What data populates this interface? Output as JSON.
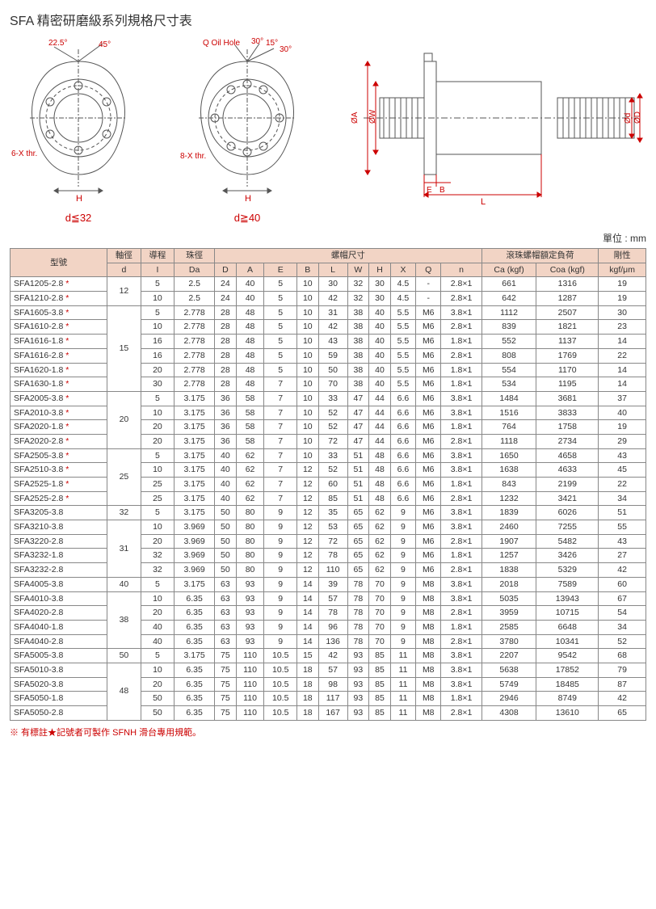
{
  "title": "SFA 精密研磨級系列規格尺寸表",
  "diagrams": {
    "left_label": "d≦32",
    "mid_label": "d≧40",
    "angles": {
      "a1": "22.5°",
      "a2": "45°",
      "a3": "30°",
      "a4": "15°",
      "a5": "30°"
    },
    "oil_hole": "Q Oil Hole",
    "thr_left": "6-X thr.",
    "thr_mid": "8-X thr.",
    "dims": {
      "H": "H",
      "OA": "ØA",
      "OW": "ØW",
      "E": "E",
      "B": "B",
      "L": "L",
      "Od": "Ød",
      "OD": "ØD"
    }
  },
  "unit": "單位 : mm",
  "headers": {
    "model": "型號",
    "shaft": "軸徑",
    "shaft_sub": "d",
    "lead": "導程",
    "lead_sub": "I",
    "ball": "珠徑",
    "ball_sub": "Da",
    "nut": "螺帽尺寸",
    "D": "D",
    "A": "A",
    "E": "E",
    "B": "B",
    "L": "L",
    "W": "W",
    "Hh": "H",
    "X": "X",
    "Q": "Q",
    "n": "n",
    "load": "滾珠螺帽額定負荷",
    "Ca": "Ca (kgf)",
    "Coa": "Coa (kgf)",
    "stiff": "剛性",
    "stiff_sub": "kgf/μm"
  },
  "groups": [
    {
      "d": "12",
      "rows": [
        {
          "m": "SFA1205-2.8",
          "s": 1,
          "I": "5",
          "Da": "2.5",
          "D": "24",
          "A": "40",
          "E": "5",
          "B": "10",
          "L": "30",
          "W": "32",
          "H": "30",
          "X": "4.5",
          "Q": "-",
          "n": "2.8×1",
          "Ca": "661",
          "Coa": "1316",
          "k": "19"
        },
        {
          "m": "SFA1210-2.8",
          "s": 1,
          "I": "10",
          "Da": "2.5",
          "D": "24",
          "A": "40",
          "E": "5",
          "B": "10",
          "L": "42",
          "W": "32",
          "H": "30",
          "X": "4.5",
          "Q": "-",
          "n": "2.8×1",
          "Ca": "642",
          "Coa": "1287",
          "k": "19"
        }
      ]
    },
    {
      "d": "15",
      "rows": [
        {
          "m": "SFA1605-3.8",
          "s": 1,
          "I": "5",
          "Da": "2.778",
          "D": "28",
          "A": "48",
          "E": "5",
          "B": "10",
          "L": "31",
          "W": "38",
          "H": "40",
          "X": "5.5",
          "Q": "M6",
          "n": "3.8×1",
          "Ca": "1112",
          "Coa": "2507",
          "k": "30"
        },
        {
          "m": "SFA1610-2.8",
          "s": 1,
          "I": "10",
          "Da": "2.778",
          "D": "28",
          "A": "48",
          "E": "5",
          "B": "10",
          "L": "42",
          "W": "38",
          "H": "40",
          "X": "5.5",
          "Q": "M6",
          "n": "2.8×1",
          "Ca": "839",
          "Coa": "1821",
          "k": "23"
        },
        {
          "m": "SFA1616-1.8",
          "s": 1,
          "I": "16",
          "Da": "2.778",
          "D": "28",
          "A": "48",
          "E": "5",
          "B": "10",
          "L": "43",
          "W": "38",
          "H": "40",
          "X": "5.5",
          "Q": "M6",
          "n": "1.8×1",
          "Ca": "552",
          "Coa": "1137",
          "k": "14"
        },
        {
          "m": "SFA1616-2.8",
          "s": 1,
          "I": "16",
          "Da": "2.778",
          "D": "28",
          "A": "48",
          "E": "5",
          "B": "10",
          "L": "59",
          "W": "38",
          "H": "40",
          "X": "5.5",
          "Q": "M6",
          "n": "2.8×1",
          "Ca": "808",
          "Coa": "1769",
          "k": "22"
        },
        {
          "m": "SFA1620-1.8",
          "s": 1,
          "I": "20",
          "Da": "2.778",
          "D": "28",
          "A": "48",
          "E": "5",
          "B": "10",
          "L": "50",
          "W": "38",
          "H": "40",
          "X": "5.5",
          "Q": "M6",
          "n": "1.8×1",
          "Ca": "554",
          "Coa": "1170",
          "k": "14"
        },
        {
          "m": "SFA1630-1.8",
          "s": 1,
          "I": "30",
          "Da": "2.778",
          "D": "28",
          "A": "48",
          "E": "7",
          "B": "10",
          "L": "70",
          "W": "38",
          "H": "40",
          "X": "5.5",
          "Q": "M6",
          "n": "1.8×1",
          "Ca": "534",
          "Coa": "1195",
          "k": "14"
        }
      ]
    },
    {
      "d": "20",
      "rows": [
        {
          "m": "SFA2005-3.8",
          "s": 1,
          "I": "5",
          "Da": "3.175",
          "D": "36",
          "A": "58",
          "E": "7",
          "B": "10",
          "L": "33",
          "W": "47",
          "H": "44",
          "X": "6.6",
          "Q": "M6",
          "n": "3.8×1",
          "Ca": "1484",
          "Coa": "3681",
          "k": "37"
        },
        {
          "m": "SFA2010-3.8",
          "s": 1,
          "I": "10",
          "Da": "3.175",
          "D": "36",
          "A": "58",
          "E": "7",
          "B": "10",
          "L": "52",
          "W": "47",
          "H": "44",
          "X": "6.6",
          "Q": "M6",
          "n": "3.8×1",
          "Ca": "1516",
          "Coa": "3833",
          "k": "40"
        },
        {
          "m": "SFA2020-1.8",
          "s": 1,
          "I": "20",
          "Da": "3.175",
          "D": "36",
          "A": "58",
          "E": "7",
          "B": "10",
          "L": "52",
          "W": "47",
          "H": "44",
          "X": "6.6",
          "Q": "M6",
          "n": "1.8×1",
          "Ca": "764",
          "Coa": "1758",
          "k": "19"
        },
        {
          "m": "SFA2020-2.8",
          "s": 1,
          "I": "20",
          "Da": "3.175",
          "D": "36",
          "A": "58",
          "E": "7",
          "B": "10",
          "L": "72",
          "W": "47",
          "H": "44",
          "X": "6.6",
          "Q": "M6",
          "n": "2.8×1",
          "Ca": "1118",
          "Coa": "2734",
          "k": "29"
        }
      ]
    },
    {
      "d": "25",
      "rows": [
        {
          "m": "SFA2505-3.8",
          "s": 1,
          "I": "5",
          "Da": "3.175",
          "D": "40",
          "A": "62",
          "E": "7",
          "B": "10",
          "L": "33",
          "W": "51",
          "H": "48",
          "X": "6.6",
          "Q": "M6",
          "n": "3.8×1",
          "Ca": "1650",
          "Coa": "4658",
          "k": "43"
        },
        {
          "m": "SFA2510-3.8",
          "s": 1,
          "I": "10",
          "Da": "3.175",
          "D": "40",
          "A": "62",
          "E": "7",
          "B": "12",
          "L": "52",
          "W": "51",
          "H": "48",
          "X": "6.6",
          "Q": "M6",
          "n": "3.8×1",
          "Ca": "1638",
          "Coa": "4633",
          "k": "45"
        },
        {
          "m": "SFA2525-1.8",
          "s": 1,
          "I": "25",
          "Da": "3.175",
          "D": "40",
          "A": "62",
          "E": "7",
          "B": "12",
          "L": "60",
          "W": "51",
          "H": "48",
          "X": "6.6",
          "Q": "M6",
          "n": "1.8×1",
          "Ca": "843",
          "Coa": "2199",
          "k": "22"
        },
        {
          "m": "SFA2525-2.8",
          "s": 1,
          "I": "25",
          "Da": "3.175",
          "D": "40",
          "A": "62",
          "E": "7",
          "B": "12",
          "L": "85",
          "W": "51",
          "H": "48",
          "X": "6.6",
          "Q": "M6",
          "n": "2.8×1",
          "Ca": "1232",
          "Coa": "3421",
          "k": "34"
        }
      ]
    },
    {
      "d": "32",
      "rows": [
        {
          "m": "SFA3205-3.8",
          "s": 0,
          "I": "5",
          "Da": "3.175",
          "D": "50",
          "A": "80",
          "E": "9",
          "B": "12",
          "L": "35",
          "W": "65",
          "H": "62",
          "X": "9",
          "Q": "M6",
          "n": "3.8×1",
          "Ca": "1839",
          "Coa": "6026",
          "k": "51"
        }
      ]
    },
    {
      "d": "31",
      "rows": [
        {
          "m": "SFA3210-3.8",
          "s": 0,
          "I": "10",
          "Da": "3.969",
          "D": "50",
          "A": "80",
          "E": "9",
          "B": "12",
          "L": "53",
          "W": "65",
          "H": "62",
          "X": "9",
          "Q": "M6",
          "n": "3.8×1",
          "Ca": "2460",
          "Coa": "7255",
          "k": "55"
        },
        {
          "m": "SFA3220-2.8",
          "s": 0,
          "I": "20",
          "Da": "3.969",
          "D": "50",
          "A": "80",
          "E": "9",
          "B": "12",
          "L": "72",
          "W": "65",
          "H": "62",
          "X": "9",
          "Q": "M6",
          "n": "2.8×1",
          "Ca": "1907",
          "Coa": "5482",
          "k": "43"
        },
        {
          "m": "SFA3232-1.8",
          "s": 0,
          "I": "32",
          "Da": "3.969",
          "D": "50",
          "A": "80",
          "E": "9",
          "B": "12",
          "L": "78",
          "W": "65",
          "H": "62",
          "X": "9",
          "Q": "M6",
          "n": "1.8×1",
          "Ca": "1257",
          "Coa": "3426",
          "k": "27"
        },
        {
          "m": "SFA3232-2.8",
          "s": 0,
          "I": "32",
          "Da": "3.969",
          "D": "50",
          "A": "80",
          "E": "9",
          "B": "12",
          "L": "110",
          "W": "65",
          "H": "62",
          "X": "9",
          "Q": "M6",
          "n": "2.8×1",
          "Ca": "1838",
          "Coa": "5329",
          "k": "42"
        }
      ]
    },
    {
      "d": "40",
      "rows": [
        {
          "m": "SFA4005-3.8",
          "s": 0,
          "I": "5",
          "Da": "3.175",
          "D": "63",
          "A": "93",
          "E": "9",
          "B": "14",
          "L": "39",
          "W": "78",
          "H": "70",
          "X": "9",
          "Q": "M8",
          "n": "3.8×1",
          "Ca": "2018",
          "Coa": "7589",
          "k": "60"
        }
      ]
    },
    {
      "d": "38",
      "rows": [
        {
          "m": "SFA4010-3.8",
          "s": 0,
          "I": "10",
          "Da": "6.35",
          "D": "63",
          "A": "93",
          "E": "9",
          "B": "14",
          "L": "57",
          "W": "78",
          "H": "70",
          "X": "9",
          "Q": "M8",
          "n": "3.8×1",
          "Ca": "5035",
          "Coa": "13943",
          "k": "67"
        },
        {
          "m": "SFA4020-2.8",
          "s": 0,
          "I": "20",
          "Da": "6.35",
          "D": "63",
          "A": "93",
          "E": "9",
          "B": "14",
          "L": "78",
          "W": "78",
          "H": "70",
          "X": "9",
          "Q": "M8",
          "n": "2.8×1",
          "Ca": "3959",
          "Coa": "10715",
          "k": "54"
        },
        {
          "m": "SFA4040-1.8",
          "s": 0,
          "I": "40",
          "Da": "6.35",
          "D": "63",
          "A": "93",
          "E": "9",
          "B": "14",
          "L": "96",
          "W": "78",
          "H": "70",
          "X": "9",
          "Q": "M8",
          "n": "1.8×1",
          "Ca": "2585",
          "Coa": "6648",
          "k": "34"
        },
        {
          "m": "SFA4040-2.8",
          "s": 0,
          "I": "40",
          "Da": "6.35",
          "D": "63",
          "A": "93",
          "E": "9",
          "B": "14",
          "L": "136",
          "W": "78",
          "H": "70",
          "X": "9",
          "Q": "M8",
          "n": "2.8×1",
          "Ca": "3780",
          "Coa": "10341",
          "k": "52"
        }
      ]
    },
    {
      "d": "50",
      "rows": [
        {
          "m": "SFA5005-3.8",
          "s": 0,
          "I": "5",
          "Da": "3.175",
          "D": "75",
          "A": "110",
          "E": "10.5",
          "B": "15",
          "L": "42",
          "W": "93",
          "H": "85",
          "X": "11",
          "Q": "M8",
          "n": "3.8×1",
          "Ca": "2207",
          "Coa": "9542",
          "k": "68"
        }
      ]
    },
    {
      "d": "48",
      "rows": [
        {
          "m": "SFA5010-3.8",
          "s": 0,
          "I": "10",
          "Da": "6.35",
          "D": "75",
          "A": "110",
          "E": "10.5",
          "B": "18",
          "L": "57",
          "W": "93",
          "H": "85",
          "X": "11",
          "Q": "M8",
          "n": "3.8×1",
          "Ca": "5638",
          "Coa": "17852",
          "k": "79"
        },
        {
          "m": "SFA5020-3.8",
          "s": 0,
          "I": "20",
          "Da": "6.35",
          "D": "75",
          "A": "110",
          "E": "10.5",
          "B": "18",
          "L": "98",
          "W": "93",
          "H": "85",
          "X": "11",
          "Q": "M8",
          "n": "3.8×1",
          "Ca": "5749",
          "Coa": "18485",
          "k": "87"
        },
        {
          "m": "SFA5050-1.8",
          "s": 0,
          "I": "50",
          "Da": "6.35",
          "D": "75",
          "A": "110",
          "E": "10.5",
          "B": "18",
          "L": "117",
          "W": "93",
          "H": "85",
          "X": "11",
          "Q": "M8",
          "n": "1.8×1",
          "Ca": "2946",
          "Coa": "8749",
          "k": "42"
        },
        {
          "m": "SFA5050-2.8",
          "s": 0,
          "I": "50",
          "Da": "6.35",
          "D": "75",
          "A": "110",
          "E": "10.5",
          "B": "18",
          "L": "167",
          "W": "93",
          "H": "85",
          "X": "11",
          "Q": "M8",
          "n": "2.8×1",
          "Ca": "4308",
          "Coa": "13610",
          "k": "65"
        }
      ]
    }
  ],
  "footnote": "※ 有標註★記號者可製作 SFNH 滑台專用規範。",
  "colors": {
    "accent": "#c00",
    "header_bg": "#f2d4c5",
    "border": "#888",
    "line": "#555"
  }
}
